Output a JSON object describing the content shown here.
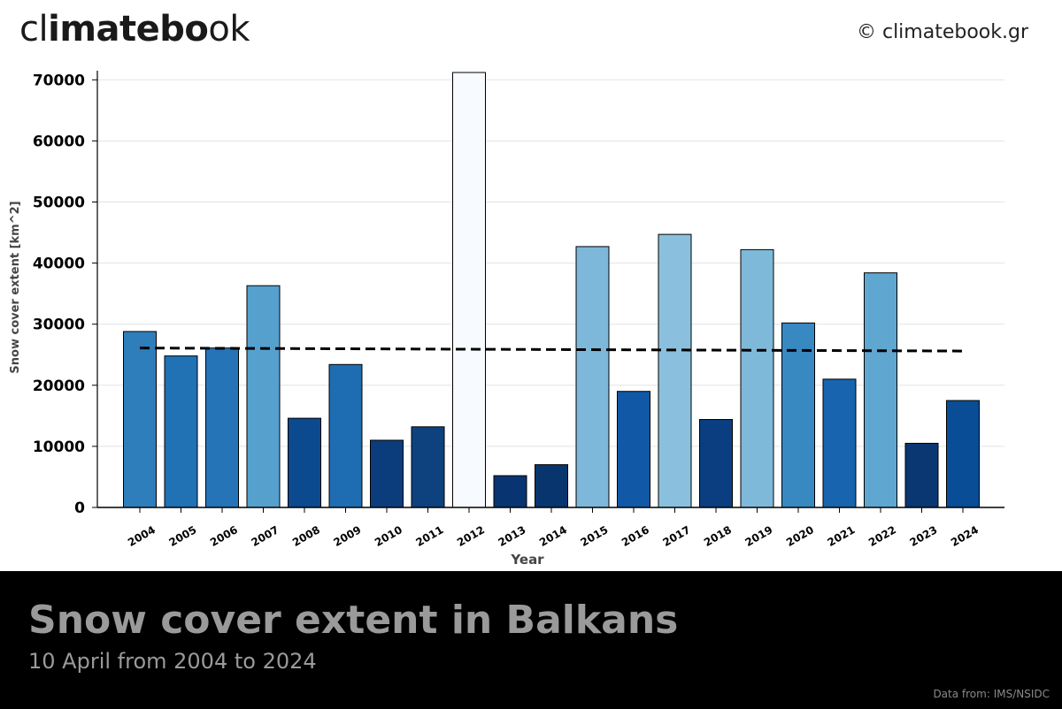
{
  "header": {
    "logo_light_1": "cl",
    "logo_bold": "imatebo",
    "logo_light_2": "ok",
    "copyright": "© climatebook.gr"
  },
  "footer": {
    "title": "Snow cover extent in Balkans",
    "subtitle": "10 April from 2004 to 2024",
    "source": "Data from: IMS/NSIDC"
  },
  "chart_data": {
    "type": "bar",
    "title": "Snow cover extent in Balkans",
    "subtitle": "10 April from 2004 to 2024",
    "xlabel": "Year",
    "ylabel": "Snow cover extent [km^2]",
    "ylim": [
      0,
      72000
    ],
    "yticks": [
      0,
      10000,
      20000,
      30000,
      40000,
      50000,
      60000,
      70000
    ],
    "grid": true,
    "colormap": "Blues (darker = lower)",
    "categories": [
      "2004",
      "2005",
      "2006",
      "2007",
      "2008",
      "2009",
      "2010",
      "2011",
      "2012",
      "2013",
      "2014",
      "2015",
      "2016",
      "2017",
      "2018",
      "2019",
      "2020",
      "2021",
      "2022",
      "2023",
      "2024"
    ],
    "values": [
      28800,
      24800,
      26100,
      36300,
      14600,
      23400,
      11000,
      13200,
      71200,
      5200,
      7000,
      42700,
      19000,
      44700,
      14400,
      42200,
      30200,
      21000,
      38400,
      10500,
      17500
    ],
    "bar_colors": [
      "#2f7ebc",
      "#2171b5",
      "#2474b7",
      "#56a0ce",
      "#0b4a8f",
      "#1e6db3",
      "#0b3d7c",
      "#0d427f",
      "#f7fbff",
      "#083472",
      "#09356f",
      "#7db8da",
      "#1158a6",
      "#8ac0de",
      "#0a3e80",
      "#7fb9da",
      "#3888c2",
      "#1864ae",
      "#5fa6d1",
      "#0a3672",
      "#084d96"
    ],
    "trend_line": {
      "style": "dashed",
      "color": "#000000",
      "start": 26100,
      "end": 25600
    }
  }
}
